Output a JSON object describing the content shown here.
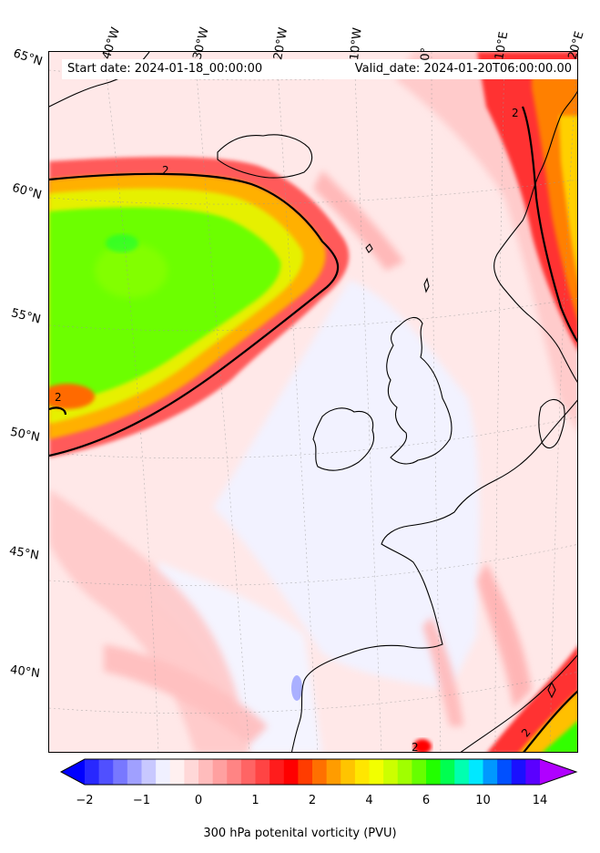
{
  "header": {
    "start_date": "Start date: 2024-01-18_00:00:00",
    "valid_date": "Valid_date: 2024-01-20T06:00:00.00"
  },
  "longitude_labels": [
    "40°W",
    "30°W",
    "20°W",
    "10°W",
    "0°",
    "10°E",
    "20°E"
  ],
  "latitude_labels": [
    "65°N",
    "60°N",
    "55°N",
    "50°N",
    "45°N",
    "40°N"
  ],
  "contour_labels": [
    "2",
    "2",
    "2",
    "2",
    "2"
  ],
  "colorbar": {
    "label": "300 hPa potenital vorticity (PVU)",
    "tick_labels": [
      "−2",
      "−1",
      "0",
      "1",
      "2",
      "4",
      "6",
      "10",
      "14"
    ],
    "colors": [
      "#0000ff",
      "#2828ff",
      "#5050ff",
      "#7878ff",
      "#a0a0ff",
      "#c8c8ff",
      "#f0f0ff",
      "#fff0f0",
      "#ffd8d8",
      "#ffbcbc",
      "#ffa0a0",
      "#ff8484",
      "#ff6464",
      "#ff4444",
      "#ff1c1c",
      "#ff0000",
      "#ff3c00",
      "#ff7000",
      "#ff9c00",
      "#ffc400",
      "#ffe600",
      "#f2ff00",
      "#ccff00",
      "#a0ff00",
      "#66ff00",
      "#22ff00",
      "#00ff50",
      "#00ffb0",
      "#00e8ff",
      "#0098ff",
      "#0050ff",
      "#1a10ff",
      "#5a00ff",
      "#b000ff"
    ]
  }
}
